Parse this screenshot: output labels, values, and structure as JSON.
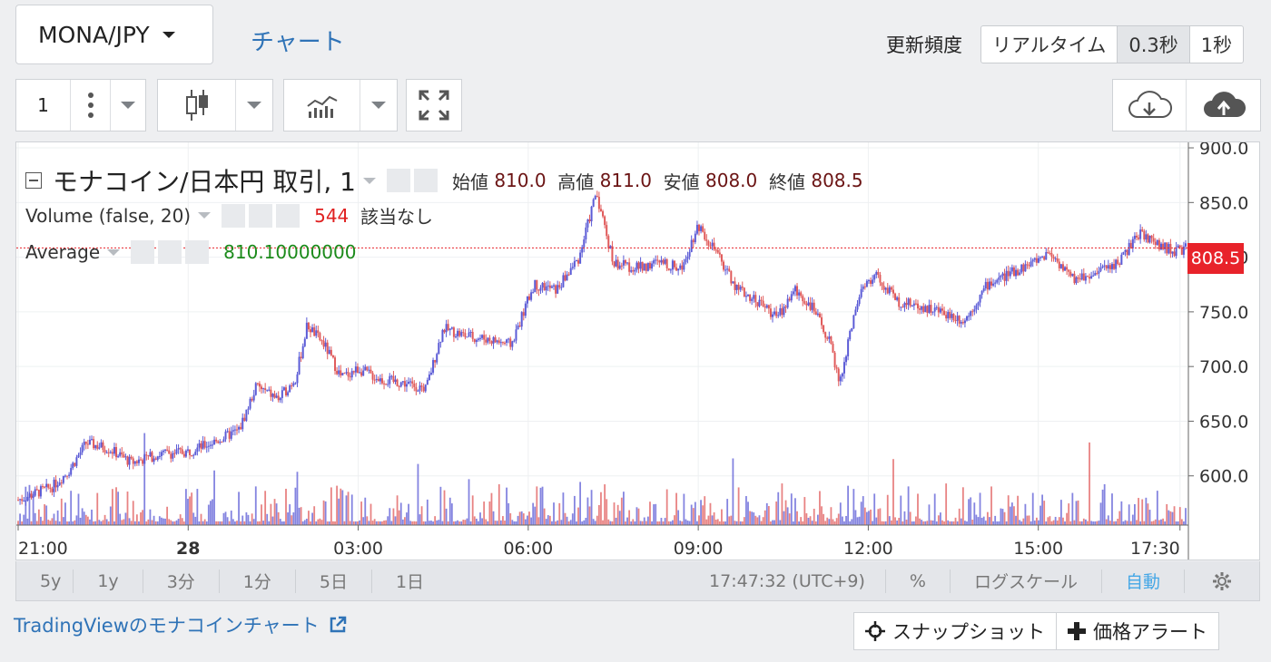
{
  "header": {
    "pair": "MONA/JPY",
    "chart_tab": "チャート",
    "freq_label": "更新頻度",
    "freq_options": [
      "リアルタイム",
      "0.3秒",
      "1秒"
    ],
    "freq_active": "0.3秒"
  },
  "toolbar": {
    "interval": "1"
  },
  "legend": {
    "symbol": "モナコイン/日本円 取引, 1",
    "open_label": "始値",
    "open": "810.0",
    "high_label": "高値",
    "high": "811.0",
    "low_label": "安値",
    "low": "808.0",
    "close_label": "終値",
    "close": "808.5",
    "volume_name": "Volume (false, 20)",
    "volume_value": "544",
    "volume_na": "該当なし",
    "average_name": "Average",
    "average_value": "810.10000000"
  },
  "price_tag": "808.5",
  "bottom": {
    "ranges": [
      "5y",
      "1y",
      "3分",
      "1分",
      "5日",
      "1日"
    ],
    "clock": "17:47:32 (UTC+9)",
    "percent": "%",
    "log": "ログスケール",
    "auto": "自動"
  },
  "footer": {
    "tv_link": "TradingViewのモナコインチャート",
    "snapshot": "スナップショット",
    "alert": "価格アラート"
  },
  "colors": {
    "up": "#5b5bd6",
    "down": "#e05a5a",
    "accent": "#2f73b7",
    "price": "#e8232a"
  },
  "chart_data": {
    "type": "candlestick",
    "y_ticks": [
      "900.0",
      "850.0",
      "800.0",
      "750.0",
      "700.0",
      "650.0",
      "600.0"
    ],
    "ylim": [
      555,
      905
    ],
    "x_ticks": [
      "21:00",
      "28",
      "03:00",
      "06:00",
      "09:00",
      "12:00",
      "15:00",
      "17:30"
    ],
    "x_tick_hours": [
      21,
      24,
      27,
      30,
      33,
      36,
      39,
      41.5
    ],
    "xlim_hours": [
      21,
      41.6
    ],
    "price_path": [
      [
        21.0,
        578
      ],
      [
        21.6,
        590
      ],
      [
        21.9,
        605
      ],
      [
        22.2,
        630
      ],
      [
        22.6,
        625
      ],
      [
        23.0,
        612
      ],
      [
        23.5,
        620
      ],
      [
        24.0,
        622
      ],
      [
        24.5,
        632
      ],
      [
        24.9,
        642
      ],
      [
        25.2,
        682
      ],
      [
        25.6,
        670
      ],
      [
        25.9,
        690
      ],
      [
        26.1,
        738
      ],
      [
        26.4,
        720
      ],
      [
        26.7,
        690
      ],
      [
        27.0,
        698
      ],
      [
        27.4,
        688
      ],
      [
        27.8,
        685
      ],
      [
        28.2,
        680
      ],
      [
        28.5,
        735
      ],
      [
        28.9,
        728
      ],
      [
        29.3,
        725
      ],
      [
        29.7,
        720
      ],
      [
        30.1,
        775
      ],
      [
        30.5,
        770
      ],
      [
        30.9,
        800
      ],
      [
        31.2,
        860
      ],
      [
        31.5,
        795
      ],
      [
        31.9,
        790
      ],
      [
        32.3,
        795
      ],
      [
        32.7,
        790
      ],
      [
        33.0,
        830
      ],
      [
        33.3,
        805
      ],
      [
        33.7,
        770
      ],
      [
        34.0,
        762
      ],
      [
        34.4,
        745
      ],
      [
        34.7,
        770
      ],
      [
        35.0,
        755
      ],
      [
        35.3,
        725
      ],
      [
        35.5,
        685
      ],
      [
        35.8,
        760
      ],
      [
        36.1,
        785
      ],
      [
        36.5,
        760
      ],
      [
        36.9,
        755
      ],
      [
        37.3,
        750
      ],
      [
        37.7,
        742
      ],
      [
        38.1,
        775
      ],
      [
        38.5,
        785
      ],
      [
        38.9,
        795
      ],
      [
        39.2,
        805
      ],
      [
        39.6,
        780
      ],
      [
        40.0,
        785
      ],
      [
        40.4,
        795
      ],
      [
        40.8,
        822
      ],
      [
        41.1,
        812
      ],
      [
        41.4,
        805
      ],
      [
        41.6,
        808
      ]
    ]
  }
}
